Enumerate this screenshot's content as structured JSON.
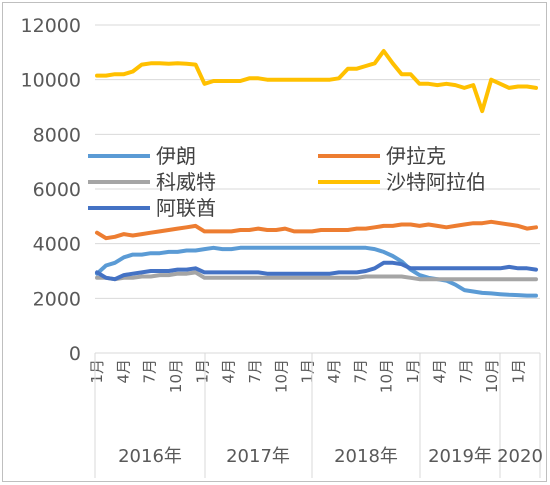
{
  "chart_data": {
    "type": "line",
    "title": "",
    "xlabel": "",
    "ylabel": "",
    "ylim": [
      0,
      12000
    ],
    "y_ticks": [
      "0",
      "2000",
      "4000",
      "6000",
      "8000",
      "10000",
      "12000"
    ],
    "grid": "horizontal",
    "legend_position": "center (inside plot, mid-height)",
    "month_labels": [
      "1月",
      "4月",
      "7月",
      "10月",
      "1月",
      "4月",
      "7月",
      "10月",
      "1月",
      "4月",
      "7月",
      "10月",
      "1月",
      "4月",
      "7月",
      "10月",
      "1月"
    ],
    "year_labels": [
      "2016年",
      "2017年",
      "2018年",
      "2019年",
      "2020"
    ],
    "series": [
      {
        "name": "伊朗",
        "color": "#5B9BD5",
        "values": [
          2900,
          3200,
          3300,
          3500,
          3600,
          3600,
          3650,
          3650,
          3700,
          3700,
          3750,
          3750,
          3800,
          3850,
          3800,
          3800,
          3850,
          3850,
          3850,
          3850,
          3850,
          3850,
          3850,
          3850,
          3850,
          3850,
          3850,
          3850,
          3850,
          3850,
          3850,
          3800,
          3700,
          3550,
          3350,
          3050,
          2850,
          2750,
          2700,
          2650,
          2500,
          2300,
          2250,
          2200,
          2180,
          2150,
          2130,
          2120,
          2100,
          2100
        ]
      },
      {
        "name": "伊拉克",
        "color": "#ED7D31",
        "values": [
          4400,
          4200,
          4250,
          4350,
          4300,
          4350,
          4400,
          4450,
          4500,
          4550,
          4600,
          4650,
          4450,
          4450,
          4450,
          4450,
          4500,
          4500,
          4550,
          4500,
          4500,
          4550,
          4450,
          4450,
          4450,
          4500,
          4500,
          4500,
          4500,
          4550,
          4550,
          4600,
          4650,
          4650,
          4700,
          4700,
          4650,
          4700,
          4650,
          4600,
          4650,
          4700,
          4750,
          4750,
          4800,
          4750,
          4700,
          4650,
          4550,
          4600
        ]
      },
      {
        "name": "科威特",
        "color": "#A5A5A5",
        "values": [
          2750,
          2750,
          2700,
          2750,
          2750,
          2800,
          2800,
          2850,
          2850,
          2900,
          2900,
          2950,
          2750,
          2750,
          2750,
          2750,
          2750,
          2750,
          2750,
          2750,
          2750,
          2750,
          2750,
          2750,
          2750,
          2750,
          2750,
          2750,
          2750,
          2750,
          2800,
          2800,
          2800,
          2800,
          2800,
          2750,
          2700,
          2700,
          2700,
          2700,
          2700,
          2700,
          2700,
          2700,
          2700,
          2700,
          2700,
          2700,
          2700,
          2700
        ]
      },
      {
        "name": "沙特阿拉伯",
        "color": "#FFC000",
        "values": [
          10150,
          10150,
          10200,
          10200,
          10300,
          10550,
          10600,
          10600,
          10580,
          10600,
          10580,
          10550,
          9850,
          9950,
          9950,
          9950,
          9950,
          10050,
          10050,
          10000,
          10000,
          10000,
          10000,
          10000,
          10000,
          10000,
          10000,
          10050,
          10400,
          10400,
          10500,
          10600,
          11050,
          10600,
          10200,
          10200,
          9850,
          9850,
          9800,
          9850,
          9800,
          9700,
          9800,
          8850,
          10000,
          9850,
          9700,
          9750,
          9750,
          9700
        ]
      },
      {
        "name": "阿联酋",
        "color": "#4472C4",
        "values": [
          2950,
          2750,
          2700,
          2850,
          2900,
          2950,
          3000,
          3000,
          3000,
          3050,
          3050,
          3100,
          2950,
          2950,
          2950,
          2950,
          2950,
          2950,
          2950,
          2900,
          2900,
          2900,
          2900,
          2900,
          2900,
          2900,
          2900,
          2950,
          2950,
          2950,
          3000,
          3100,
          3300,
          3300,
          3250,
          3100,
          3100,
          3100,
          3100,
          3100,
          3100,
          3100,
          3100,
          3100,
          3100,
          3100,
          3150,
          3100,
          3100,
          3050
        ]
      }
    ]
  }
}
